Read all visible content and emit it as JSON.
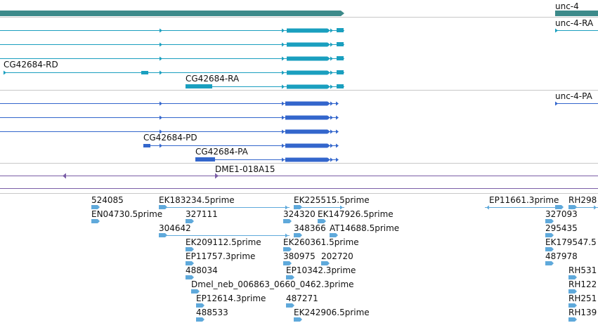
{
  "colors": {
    "gene": "#3d8a8a",
    "rna": "#1a9fbf",
    "protein": "#3366cc",
    "clone": "#7b5ea7",
    "est": "#5fa9db",
    "divider": "#c8c8c8"
  },
  "gene_track": {
    "genes": [
      {
        "name": ""
      },
      {
        "name": "unc-4"
      }
    ]
  },
  "transcript_track": {
    "rows": [
      {
        "label": ""
      },
      {
        "label": ""
      },
      {
        "label": ""
      },
      {
        "label": "CG42684-RD"
      },
      {
        "label": "CG42684-RA"
      }
    ],
    "right_label": "unc-4-RA"
  },
  "protein_track": {
    "rows": [
      {
        "label": ""
      },
      {
        "label": ""
      },
      {
        "label": ""
      },
      {
        "label": "CG42684-PD"
      },
      {
        "label": "CG42684-PA"
      }
    ],
    "right_label": "unc-4-PA"
  },
  "clone_track": {
    "label": "DME1-018A15"
  },
  "est_track": {
    "labels": [
      "524085",
      "EK183234.5prime",
      "EK225515.5prime",
      "EP11661.3prime",
      "RH298",
      "EN04730.5prime",
      "327111",
      "324320",
      "EK147926.5prime",
      "327093",
      "304642",
      "348366",
      "AT14688.5prime",
      "295435",
      "EK209112.5prime",
      "EK260361.5prime",
      "EK179547.5",
      "EP11757.3prime",
      "380975",
      "202720",
      "487978",
      "488034",
      "EP10342.3prime",
      "RH531",
      "Dmel_neb_006863_0660_0462.3prime",
      "RH122",
      "EP12614.3prime",
      "487271",
      "RH251",
      "488533",
      "EK242906.5prime",
      "RH139"
    ]
  }
}
